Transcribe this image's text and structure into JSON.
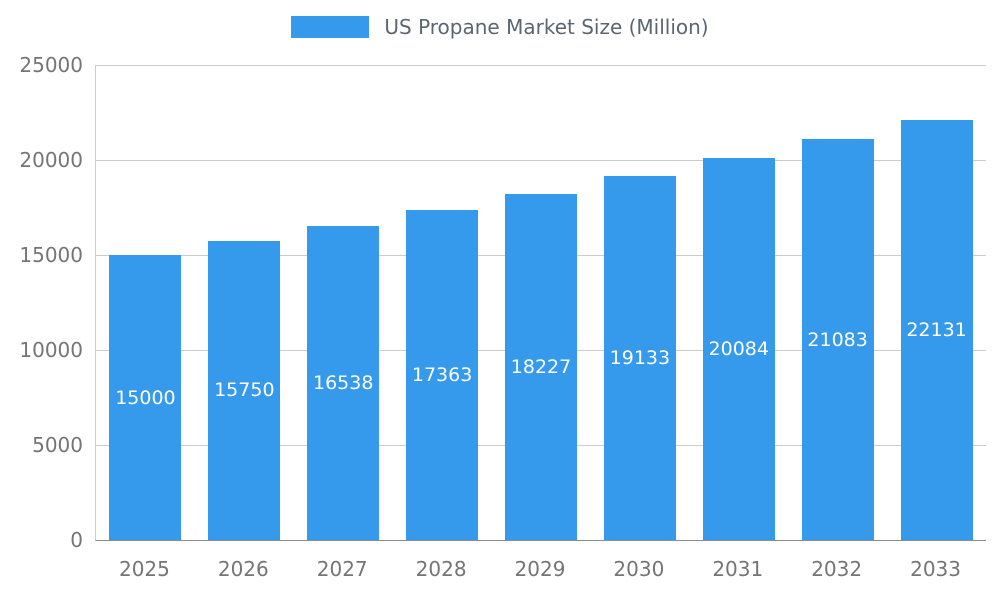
{
  "chart_data": {
    "type": "bar",
    "title": "US Propane Market Size (Million)",
    "categories": [
      "2025",
      "2026",
      "2027",
      "2028",
      "2029",
      "2030",
      "2031",
      "2032",
      "2033"
    ],
    "values": [
      15000,
      15750,
      16538,
      17363,
      18227,
      19133,
      20084,
      21083,
      22131
    ],
    "xlabel": "",
    "ylabel": "",
    "ylim": [
      0,
      25000
    ],
    "yticks": [
      0,
      5000,
      10000,
      15000,
      20000,
      25000
    ],
    "grid": true,
    "legend_position": "top-center",
    "bar_labels_inside": true,
    "colors": {
      "bar": "#3599EC",
      "grid": "#CCCCCC",
      "axis_line": "#8A8A8A",
      "tick_text": "#757575",
      "bar_label_text": "#FFFFFF",
      "title_text": "#5A6672"
    }
  }
}
